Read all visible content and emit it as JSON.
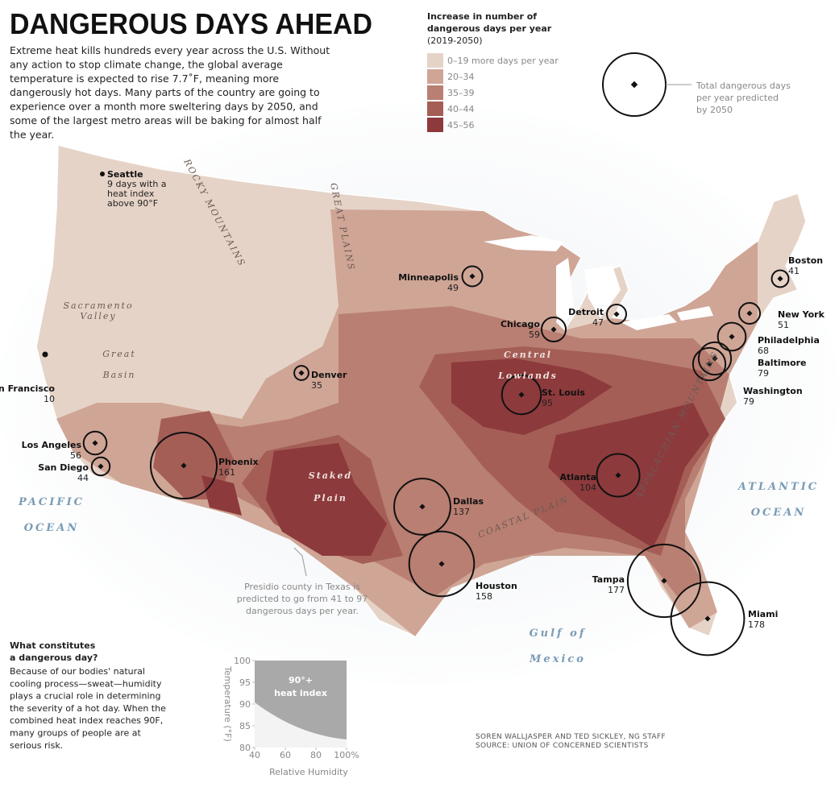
{
  "title": "DANGEROUS DAYS AHEAD",
  "intro": [
    "Extreme heat kills hundreds every year across the U.S. Without",
    "any action to stop climate change, the global average",
    "temperature is expected to rise 7.7˚F, meaning more",
    "dangerously hot days. Many parts of the country are going to",
    "experience over a month more sweltering days by 2050, and",
    "some of the largest metro areas will be baking for almost half",
    "the year."
  ],
  "legend": {
    "title": [
      "Increase in number of",
      "dangerous days per year"
    ],
    "period": "(2019-2050)",
    "classes": [
      {
        "label": "0–19 more days per year",
        "color": "#e6d3c7"
      },
      {
        "label": "20–34",
        "color": "#cfa596"
      },
      {
        "label": "35–39",
        "color": "#b97f72"
      },
      {
        "label": "40–44",
        "color": "#a45e56"
      },
      {
        "label": "45–56",
        "color": "#8d3a3c"
      }
    ],
    "circle_note": [
      "Total dangerous days",
      "per year predicted",
      "by 2050"
    ]
  },
  "cities": [
    {
      "name": "Boston",
      "value": 41
    },
    {
      "name": "New York",
      "value": 51
    },
    {
      "name": "Philadelphia",
      "value": 68
    },
    {
      "name": "Baltimore",
      "value": 79
    },
    {
      "name": "Washington",
      "value": 79
    },
    {
      "name": "Detroit",
      "value": 47
    },
    {
      "name": "Chicago",
      "value": 59
    },
    {
      "name": "Minneapolis",
      "value": 49
    },
    {
      "name": "St. Louis",
      "value": 95
    },
    {
      "name": "Denver",
      "value": 35
    },
    {
      "name": "Atlanta",
      "value": 104
    },
    {
      "name": "Dallas",
      "value": 137
    },
    {
      "name": "Houston",
      "value": 158
    },
    {
      "name": "Tampa",
      "value": 177
    },
    {
      "name": "Miami",
      "value": 178
    },
    {
      "name": "Phoenix",
      "value": 161
    },
    {
      "name": "Los Angeles",
      "value": 56
    },
    {
      "name": "San Diego",
      "value": 44
    },
    {
      "name": "San Francisco",
      "value": 10
    }
  ],
  "seattle": {
    "name": "Seattle",
    "note": [
      "9 days with a",
      "heat index",
      "above 90°F"
    ]
  },
  "presidio_note": [
    "Presidio county in Texas is",
    "predicted to go from 41 to 97",
    "dangerous days per year."
  ],
  "regions": [
    {
      "lines": [
        "ROCKY MOUNTAINS"
      ]
    },
    {
      "lines": [
        "GREAT PLAINS"
      ]
    },
    {
      "lines": [
        "Central",
        "Lowlands"
      ]
    },
    {
      "lines": [
        "Great",
        "Basin"
      ]
    },
    {
      "lines": [
        "Sacramento",
        "Valley"
      ]
    },
    {
      "lines": [
        "Staked",
        "Plain"
      ]
    },
    {
      "lines": [
        "COASTAL PLAIN"
      ]
    },
    {
      "lines": [
        "APPALACHIAN MOUNTAINS"
      ]
    },
    {
      "lines": [
        "PACIFIC",
        "OCEAN"
      ]
    },
    {
      "lines": [
        "ATLANTIC",
        "OCEAN"
      ]
    },
    {
      "lines": [
        "Gulf of",
        "Mexico"
      ]
    }
  ],
  "sidebar": {
    "heading": [
      "What constitutes",
      "a dangerous day?"
    ],
    "body": [
      "Because of our bodies' natural",
      "cooling process—sweat—humidity",
      "plays a crucial role in determining",
      "the severity of a hot day. When the",
      "combined heat index reaches 90F,",
      "many groups of people are at",
      "serious risk."
    ]
  },
  "heat_chart": {
    "area_label": [
      "90°+",
      "heat index"
    ],
    "x_label": "Relative Humidity",
    "y_label": "Temperature (°F)",
    "xlim": [
      40,
      100
    ],
    "ylim": [
      80,
      100
    ],
    "xticks": [
      40,
      60,
      80,
      {
        "value": 100,
        "label": "100%"
      }
    ],
    "yticks": [
      80,
      85,
      90,
      95,
      100
    ]
  },
  "credits": [
    "SOREN WALLJASPER AND TED SICKLEY, NG STAFF",
    "SOURCE: UNION OF CONCERNED SCIENTISTS"
  ]
}
